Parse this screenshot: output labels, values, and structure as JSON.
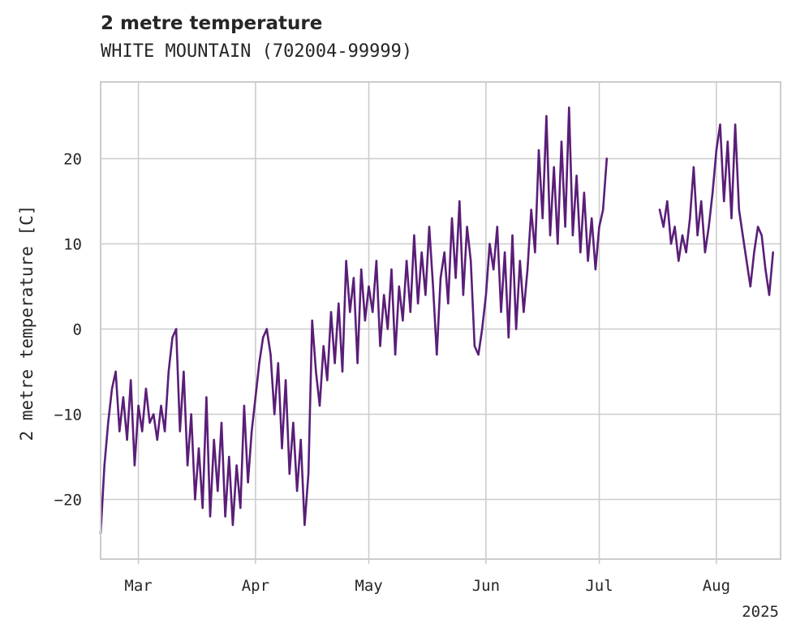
{
  "chart_data": {
    "type": "line",
    "title": "2 metre temperature",
    "subtitle": "WHITE MOUNTAIN (702004-99999)",
    "ylabel": "2 metre temperature [C]",
    "xlabel": "",
    "year_label": "2025",
    "ylim": [
      -27,
      29
    ],
    "xlim": [
      "2025-02-19",
      "2025-08-18"
    ],
    "grid": true,
    "x_ticks": [
      {
        "label": "Mar",
        "date": "2025-03-01"
      },
      {
        "label": "Apr",
        "date": "2025-04-01"
      },
      {
        "label": "May",
        "date": "2025-05-01"
      },
      {
        "label": "Jun",
        "date": "2025-06-01"
      },
      {
        "label": "Jul",
        "date": "2025-07-01"
      },
      {
        "label": "Aug",
        "date": "2025-08-01"
      }
    ],
    "y_ticks": [
      {
        "label": "−20",
        "value": -20
      },
      {
        "label": "−10",
        "value": -10
      },
      {
        "label": "0",
        "value": 0
      },
      {
        "label": "10",
        "value": 10
      },
      {
        "label": "20",
        "value": 20
      }
    ],
    "color": "#5a1e78",
    "series": [
      {
        "points": [
          {
            "date": "2025-02-19",
            "y": -24
          },
          {
            "date": "2025-02-20",
            "y": -16
          },
          {
            "date": "2025-02-21",
            "y": -11
          },
          {
            "date": "2025-02-22",
            "y": -7
          },
          {
            "date": "2025-02-23",
            "y": -5
          },
          {
            "date": "2025-02-24",
            "y": -12
          },
          {
            "date": "2025-02-25",
            "y": -8
          },
          {
            "date": "2025-02-26",
            "y": -13
          },
          {
            "date": "2025-02-27",
            "y": -6
          },
          {
            "date": "2025-02-28",
            "y": -16
          },
          {
            "date": "2025-03-01",
            "y": -9
          },
          {
            "date": "2025-03-02",
            "y": -12
          },
          {
            "date": "2025-03-03",
            "y": -7
          },
          {
            "date": "2025-03-04",
            "y": -11
          },
          {
            "date": "2025-03-05",
            "y": -10
          },
          {
            "date": "2025-03-06",
            "y": -13
          },
          {
            "date": "2025-03-07",
            "y": -9
          },
          {
            "date": "2025-03-08",
            "y": -12
          },
          {
            "date": "2025-03-09",
            "y": -5
          },
          {
            "date": "2025-03-10",
            "y": -1
          },
          {
            "date": "2025-03-11",
            "y": 0
          },
          {
            "date": "2025-03-12",
            "y": -12
          },
          {
            "date": "2025-03-13",
            "y": -5
          },
          {
            "date": "2025-03-14",
            "y": -16
          },
          {
            "date": "2025-03-15",
            "y": -10
          },
          {
            "date": "2025-03-16",
            "y": -20
          },
          {
            "date": "2025-03-17",
            "y": -14
          },
          {
            "date": "2025-03-18",
            "y": -21
          },
          {
            "date": "2025-03-19",
            "y": -8
          },
          {
            "date": "2025-03-20",
            "y": -22
          },
          {
            "date": "2025-03-21",
            "y": -13
          },
          {
            "date": "2025-03-22",
            "y": -19
          },
          {
            "date": "2025-03-23",
            "y": -11
          },
          {
            "date": "2025-03-24",
            "y": -22
          },
          {
            "date": "2025-03-25",
            "y": -15
          },
          {
            "date": "2025-03-26",
            "y": -23
          },
          {
            "date": "2025-03-27",
            "y": -16
          },
          {
            "date": "2025-03-28",
            "y": -21
          },
          {
            "date": "2025-03-29",
            "y": -9
          },
          {
            "date": "2025-03-30",
            "y": -18
          },
          {
            "date": "2025-03-31",
            "y": -12
          },
          {
            "date": "2025-04-01",
            "y": -8
          },
          {
            "date": "2025-04-02",
            "y": -4
          },
          {
            "date": "2025-04-03",
            "y": -1
          },
          {
            "date": "2025-04-04",
            "y": 0
          },
          {
            "date": "2025-04-05",
            "y": -3
          },
          {
            "date": "2025-04-06",
            "y": -10
          },
          {
            "date": "2025-04-07",
            "y": -4
          },
          {
            "date": "2025-04-08",
            "y": -14
          },
          {
            "date": "2025-04-09",
            "y": -6
          },
          {
            "date": "2025-04-10",
            "y": -17
          },
          {
            "date": "2025-04-11",
            "y": -11
          },
          {
            "date": "2025-04-12",
            "y": -19
          },
          {
            "date": "2025-04-13",
            "y": -13
          },
          {
            "date": "2025-04-14",
            "y": -23
          },
          {
            "date": "2025-04-15",
            "y": -17
          },
          {
            "date": "2025-04-16",
            "y": 1
          },
          {
            "date": "2025-04-17",
            "y": -5
          },
          {
            "date": "2025-04-18",
            "y": -9
          },
          {
            "date": "2025-04-19",
            "y": -2
          },
          {
            "date": "2025-04-20",
            "y": -6
          },
          {
            "date": "2025-04-21",
            "y": 2
          },
          {
            "date": "2025-04-22",
            "y": -4
          },
          {
            "date": "2025-04-23",
            "y": 3
          },
          {
            "date": "2025-04-24",
            "y": -5
          },
          {
            "date": "2025-04-25",
            "y": 8
          },
          {
            "date": "2025-04-26",
            "y": 2
          },
          {
            "date": "2025-04-27",
            "y": 6
          },
          {
            "date": "2025-04-28",
            "y": -4
          },
          {
            "date": "2025-04-29",
            "y": 7
          },
          {
            "date": "2025-04-30",
            "y": 1
          },
          {
            "date": "2025-05-01",
            "y": 5
          },
          {
            "date": "2025-05-02",
            "y": 2
          },
          {
            "date": "2025-05-03",
            "y": 8
          },
          {
            "date": "2025-05-04",
            "y": -2
          },
          {
            "date": "2025-05-05",
            "y": 4
          },
          {
            "date": "2025-05-06",
            "y": 0
          },
          {
            "date": "2025-05-07",
            "y": 7
          },
          {
            "date": "2025-05-08",
            "y": -3
          },
          {
            "date": "2025-05-09",
            "y": 5
          },
          {
            "date": "2025-05-10",
            "y": 1
          },
          {
            "date": "2025-05-11",
            "y": 8
          },
          {
            "date": "2025-05-12",
            "y": 2
          },
          {
            "date": "2025-05-13",
            "y": 11
          },
          {
            "date": "2025-05-14",
            "y": 3
          },
          {
            "date": "2025-05-15",
            "y": 9
          },
          {
            "date": "2025-05-16",
            "y": 4
          },
          {
            "date": "2025-05-17",
            "y": 12
          },
          {
            "date": "2025-05-18",
            "y": 5
          },
          {
            "date": "2025-05-19",
            "y": -3
          },
          {
            "date": "2025-05-20",
            "y": 6
          },
          {
            "date": "2025-05-21",
            "y": 9
          },
          {
            "date": "2025-05-22",
            "y": 3
          },
          {
            "date": "2025-05-23",
            "y": 13
          },
          {
            "date": "2025-05-24",
            "y": 6
          },
          {
            "date": "2025-05-25",
            "y": 15
          },
          {
            "date": "2025-05-26",
            "y": 4
          },
          {
            "date": "2025-05-27",
            "y": 12
          },
          {
            "date": "2025-05-28",
            "y": 8
          },
          {
            "date": "2025-05-29",
            "y": -2
          },
          {
            "date": "2025-05-30",
            "y": -3
          },
          {
            "date": "2025-05-31",
            "y": 0
          },
          {
            "date": "2025-06-01",
            "y": 4
          },
          {
            "date": "2025-06-02",
            "y": 10
          },
          {
            "date": "2025-06-03",
            "y": 7
          },
          {
            "date": "2025-06-04",
            "y": 12
          },
          {
            "date": "2025-06-05",
            "y": 2
          },
          {
            "date": "2025-06-06",
            "y": 9
          },
          {
            "date": "2025-06-07",
            "y": -1
          },
          {
            "date": "2025-06-08",
            "y": 11
          },
          {
            "date": "2025-06-09",
            "y": 0
          },
          {
            "date": "2025-06-10",
            "y": 8
          },
          {
            "date": "2025-06-11",
            "y": 2
          },
          {
            "date": "2025-06-12",
            "y": 7
          },
          {
            "date": "2025-06-13",
            "y": 14
          },
          {
            "date": "2025-06-14",
            "y": 9
          },
          {
            "date": "2025-06-15",
            "y": 21
          },
          {
            "date": "2025-06-16",
            "y": 13
          },
          {
            "date": "2025-06-17",
            "y": 25
          },
          {
            "date": "2025-06-18",
            "y": 11
          },
          {
            "date": "2025-06-19",
            "y": 19
          },
          {
            "date": "2025-06-20",
            "y": 10
          },
          {
            "date": "2025-06-21",
            "y": 22
          },
          {
            "date": "2025-06-22",
            "y": 12
          },
          {
            "date": "2025-06-23",
            "y": 26
          },
          {
            "date": "2025-06-24",
            "y": 11
          },
          {
            "date": "2025-06-25",
            "y": 18
          },
          {
            "date": "2025-06-26",
            "y": 9
          },
          {
            "date": "2025-06-27",
            "y": 16
          },
          {
            "date": "2025-06-28",
            "y": 8
          },
          {
            "date": "2025-06-29",
            "y": 13
          },
          {
            "date": "2025-06-30",
            "y": 7
          },
          {
            "date": "2025-07-01",
            "y": 12
          },
          {
            "date": "2025-07-02",
            "y": 14
          },
          {
            "date": "2025-07-03",
            "y": 20
          },
          {
            "date": null,
            "y": null
          },
          {
            "date": "2025-07-17",
            "y": 14
          },
          {
            "date": "2025-07-18",
            "y": 12
          },
          {
            "date": "2025-07-19",
            "y": 15
          },
          {
            "date": "2025-07-20",
            "y": 10
          },
          {
            "date": "2025-07-21",
            "y": 12
          },
          {
            "date": "2025-07-22",
            "y": 8
          },
          {
            "date": "2025-07-23",
            "y": 11
          },
          {
            "date": "2025-07-24",
            "y": 9
          },
          {
            "date": "2025-07-25",
            "y": 13
          },
          {
            "date": "2025-07-26",
            "y": 19
          },
          {
            "date": "2025-07-27",
            "y": 11
          },
          {
            "date": "2025-07-28",
            "y": 15
          },
          {
            "date": "2025-07-29",
            "y": 9
          },
          {
            "date": "2025-07-30",
            "y": 12
          },
          {
            "date": "2025-07-31",
            "y": 16
          },
          {
            "date": "2025-08-01",
            "y": 21
          },
          {
            "date": "2025-08-02",
            "y": 24
          },
          {
            "date": "2025-08-03",
            "y": 15
          },
          {
            "date": "2025-08-04",
            "y": 22
          },
          {
            "date": "2025-08-05",
            "y": 13
          },
          {
            "date": "2025-08-06",
            "y": 24
          },
          {
            "date": "2025-08-07",
            "y": 14
          },
          {
            "date": "2025-08-08",
            "y": 11
          },
          {
            "date": "2025-08-09",
            "y": 8
          },
          {
            "date": "2025-08-10",
            "y": 5
          },
          {
            "date": "2025-08-11",
            "y": 9
          },
          {
            "date": "2025-08-12",
            "y": 12
          },
          {
            "date": "2025-08-13",
            "y": 11
          },
          {
            "date": "2025-08-14",
            "y": 7
          },
          {
            "date": "2025-08-15",
            "y": 4
          },
          {
            "date": "2025-08-16",
            "y": 9
          }
        ]
      }
    ]
  }
}
